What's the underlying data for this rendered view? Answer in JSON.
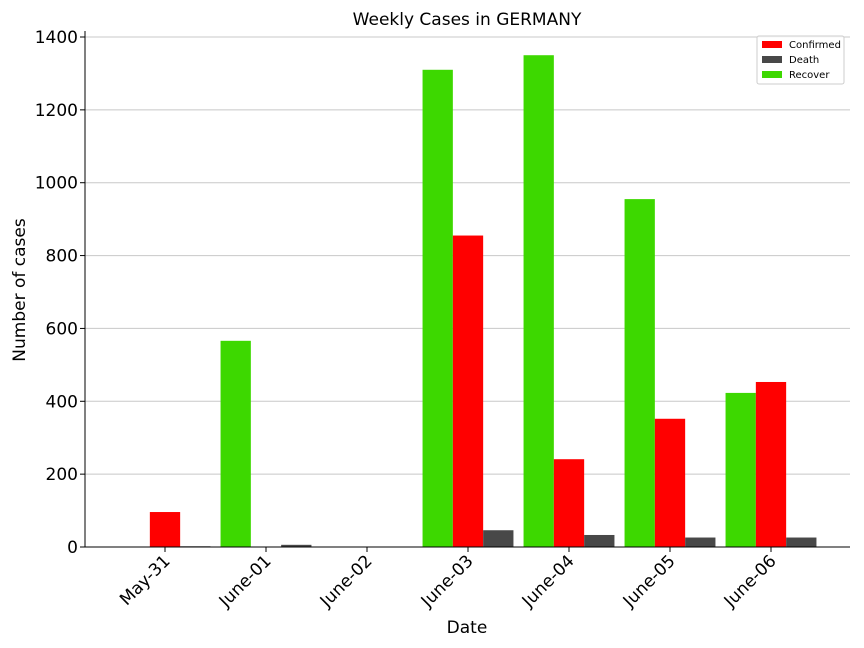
{
  "chart_data": {
    "type": "bar",
    "title": "Weekly Cases in GERMANY",
    "xlabel": "Date",
    "ylabel": "Number of cases",
    "categories": [
      "May-31",
      "June-01",
      "June-02",
      "June-03",
      "June-04",
      "June-05",
      "June-06"
    ],
    "series": [
      {
        "name": "Recover",
        "color": "#3dd800",
        "values": [
          0,
          566,
          0,
          1310,
          1350,
          955,
          423
        ]
      },
      {
        "name": "Confirmed",
        "color": "#ff0000",
        "values": [
          96,
          0,
          0,
          855,
          241,
          352,
          453
        ]
      },
      {
        "name": "Death",
        "color": "#484848",
        "values": [
          2,
          6,
          0,
          46,
          33,
          26,
          26
        ]
      }
    ],
    "legend_order": [
      "Confirmed",
      "Death",
      "Recover"
    ],
    "legend_position": "top-right",
    "ylim": [
      0,
      1400
    ],
    "yticks": [
      0,
      200,
      400,
      600,
      800,
      1000,
      1200,
      1400
    ],
    "grid": "horizontal"
  }
}
